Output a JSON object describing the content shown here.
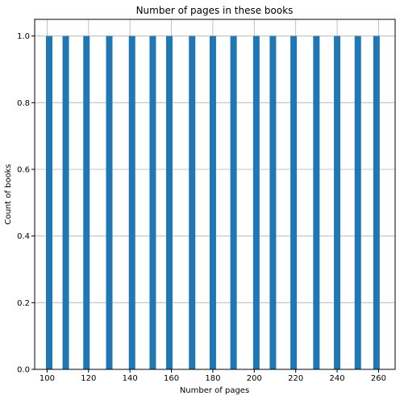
{
  "chart_data": {
    "type": "bar",
    "title": "Number of pages in these books",
    "xlabel": "Number of pages",
    "ylabel": "Count of books",
    "xlim": [
      94,
      268
    ],
    "ylim": [
      0,
      1.05
    ],
    "x_ticks": [
      100,
      120,
      140,
      160,
      180,
      200,
      220,
      240,
      260
    ],
    "x_tick_labels": [
      "100",
      "120",
      "140",
      "160",
      "180",
      "200",
      "220",
      "240",
      "260"
    ],
    "y_ticks": [
      0,
      0.2,
      0.4,
      0.6,
      0.8,
      1.0
    ],
    "y_tick_labels": [
      "0.0",
      "0.2",
      "0.4",
      "0.6",
      "0.8",
      "1.0"
    ],
    "grid": true,
    "bar_color": "#1f77b4",
    "bars": [
      {
        "x": 101,
        "value": 1
      },
      {
        "x": 109,
        "value": 1
      },
      {
        "x": 119,
        "value": 1
      },
      {
        "x": 130,
        "value": 1
      },
      {
        "x": 141,
        "value": 1
      },
      {
        "x": 151,
        "value": 1
      },
      {
        "x": 159,
        "value": 1
      },
      {
        "x": 170,
        "value": 1
      },
      {
        "x": 180,
        "value": 1
      },
      {
        "x": 190,
        "value": 1
      },
      {
        "x": 201,
        "value": 1
      },
      {
        "x": 209,
        "value": 1
      },
      {
        "x": 219,
        "value": 1
      },
      {
        "x": 230,
        "value": 1
      },
      {
        "x": 240,
        "value": 1
      },
      {
        "x": 250,
        "value": 1
      },
      {
        "x": 259,
        "value": 1
      }
    ]
  }
}
